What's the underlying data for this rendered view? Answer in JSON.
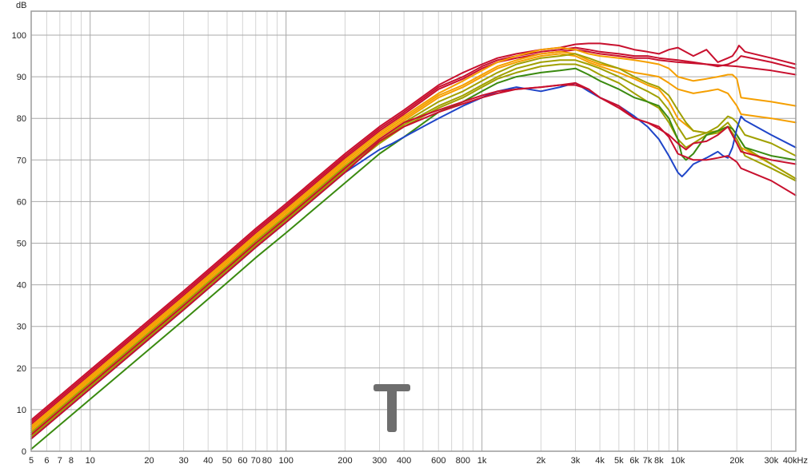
{
  "chart_data": {
    "type": "line",
    "x_scale": "log",
    "xlim": [
      5,
      40000
    ],
    "ylim": [
      0,
      105
    ],
    "x_unit": "kHz",
    "y_unit": "dB",
    "grid": true,
    "legend": "none",
    "x_ticks": [
      {
        "value": 5,
        "label": "5"
      },
      {
        "value": 6,
        "label": "6"
      },
      {
        "value": 7,
        "label": "7"
      },
      {
        "value": 8,
        "label": "8"
      },
      {
        "value": 10,
        "label": "10"
      },
      {
        "value": 20,
        "label": "20"
      },
      {
        "value": 30,
        "label": "30"
      },
      {
        "value": 40,
        "label": "40"
      },
      {
        "value": 50,
        "label": "50"
      },
      {
        "value": 60,
        "label": "60"
      },
      {
        "value": 70,
        "label": "70"
      },
      {
        "value": 80,
        "label": "80"
      },
      {
        "value": 100,
        "label": "100"
      },
      {
        "value": 200,
        "label": "200"
      },
      {
        "value": 300,
        "label": "300"
      },
      {
        "value": 400,
        "label": "400"
      },
      {
        "value": 600,
        "label": "600"
      },
      {
        "value": 800,
        "label": "800"
      },
      {
        "value": 1000,
        "label": "1k"
      },
      {
        "value": 2000,
        "label": "2k"
      },
      {
        "value": 3000,
        "label": "3k"
      },
      {
        "value": 4000,
        "label": "4k"
      },
      {
        "value": 5000,
        "label": "5k"
      },
      {
        "value": 6000,
        "label": "6k"
      },
      {
        "value": 7000,
        "label": "7k"
      },
      {
        "value": 8000,
        "label": "8k"
      },
      {
        "value": 10000,
        "label": "10k"
      },
      {
        "value": 20000,
        "label": "20k"
      },
      {
        "value": 30000,
        "label": "30k"
      },
      {
        "value": 40000,
        "label": "40k"
      }
    ],
    "y_ticks": [
      0,
      10,
      20,
      30,
      40,
      50,
      60,
      70,
      80,
      90,
      100
    ],
    "series": [
      {
        "color": "#c8102e",
        "x": [
          5,
          10,
          20,
          30,
          50,
          70,
          100,
          200,
          300,
          400,
          600,
          800,
          1000,
          1200,
          1500,
          2000,
          2500,
          3000,
          3500,
          4000,
          5000,
          6000,
          7000,
          8000,
          9000,
          10000,
          12000,
          14000,
          16000,
          18000,
          19000,
          20000,
          20500,
          21000,
          22000,
          30000,
          40000
        ],
        "y": [
          7.5,
          19.5,
          31.5,
          38.5,
          47.5,
          53.5,
          59.5,
          71.5,
          78,
          82,
          88,
          91,
          93,
          94.5,
          95.5,
          96.5,
          97,
          97.8,
          98,
          98,
          97.5,
          96.5,
          96,
          95.5,
          96.5,
          97,
          95,
          96.5,
          93.5,
          94.5,
          95,
          96.5,
          97.5,
          97,
          96,
          94.5,
          93
        ]
      },
      {
        "color": "#c8102e",
        "x": [
          5,
          10,
          20,
          30,
          50,
          70,
          100,
          200,
          300,
          400,
          600,
          800,
          1000,
          1200,
          1500,
          2000,
          2500,
          3000,
          3500,
          4000,
          5000,
          6000,
          7000,
          8000,
          10000,
          12000,
          14000,
          16000,
          18000,
          20000,
          21000,
          30000,
          40000
        ],
        "y": [
          7,
          19,
          31,
          38,
          47,
          53,
          59,
          71,
          77.5,
          81.5,
          87.5,
          90,
          92.5,
          94,
          95,
          96,
          96.5,
          97,
          96.5,
          96,
          95.5,
          95,
          95,
          94.5,
          94,
          93.5,
          93,
          92.5,
          93,
          94,
          95,
          93.5,
          92
        ]
      },
      {
        "color": "#c8102e",
        "x": [
          5,
          10,
          20,
          30,
          50,
          70,
          100,
          200,
          300,
          400,
          600,
          800,
          1000,
          1200,
          1500,
          2000,
          2500,
          3000,
          3500,
          4000,
          5000,
          6000,
          7000,
          8000,
          10000,
          20000,
          30000,
          40000
        ],
        "y": [
          6.5,
          18.5,
          30.5,
          37.5,
          46.5,
          52.5,
          58.5,
          70.5,
          77,
          81,
          87,
          89.5,
          92,
          93.5,
          94.5,
          95.5,
          96,
          96.5,
          96,
          95.5,
          95,
          94.5,
          94.5,
          94,
          93.5,
          92.5,
          91.5,
          90.5
        ]
      },
      {
        "color": "#f59f00",
        "x": [
          5,
          10,
          20,
          30,
          50,
          70,
          100,
          200,
          300,
          400,
          600,
          800,
          1000,
          1200,
          1500,
          2000,
          2500,
          3000,
          3500,
          4000,
          5000,
          6000,
          7000,
          8000,
          9000,
          10000,
          12000,
          14000,
          16000,
          18000,
          19000,
          20000,
          21000,
          30000,
          40000
        ],
        "y": [
          6,
          18,
          30,
          37,
          46,
          52,
          58,
          70,
          76.5,
          80.5,
          86,
          89,
          91.5,
          93.5,
          95,
          96.5,
          97,
          96.5,
          95.5,
          95,
          94.5,
          94,
          93.5,
          93,
          92,
          90,
          89,
          89.5,
          90,
          90.5,
          90.5,
          89.5,
          85,
          84,
          83
        ]
      },
      {
        "color": "#f59f00",
        "x": [
          5,
          10,
          20,
          30,
          50,
          70,
          100,
          200,
          300,
          400,
          600,
          800,
          1000,
          1200,
          1500,
          2000,
          2500,
          3000,
          3500,
          4000,
          5000,
          6000,
          7000,
          8000,
          9000,
          10000,
          12000,
          14000,
          16000,
          18000,
          20000,
          21000,
          30000,
          40000
        ],
        "y": [
          5.5,
          17.5,
          29.5,
          36.5,
          45.5,
          51.5,
          57.5,
          69.5,
          76,
          80,
          85.5,
          88,
          90.5,
          92.5,
          94,
          95.5,
          96,
          95.5,
          94,
          93,
          92,
          91,
          90.5,
          90,
          88.5,
          87,
          86,
          86.5,
          87,
          86,
          83,
          81,
          80,
          79
        ]
      },
      {
        "color": "#f59f00",
        "x": [
          5,
          10,
          20,
          30,
          50,
          70,
          100,
          200,
          300,
          400,
          600,
          800,
          1000,
          1200,
          1500,
          2000,
          2500,
          3000,
          3500,
          4000,
          5000,
          6000,
          7000,
          8000,
          9000,
          10000,
          12000,
          14000,
          16000,
          18000,
          20000,
          21000,
          30000,
          40000
        ],
        "y": [
          5,
          17,
          29,
          36,
          45,
          51,
          57,
          69,
          75.5,
          79.5,
          85,
          87.5,
          90,
          92,
          93.5,
          95,
          95.5,
          95,
          93.5,
          92.5,
          91,
          89.5,
          88,
          87,
          84,
          80,
          77,
          76.5,
          77,
          78,
          75,
          73,
          69,
          65.5
        ]
      },
      {
        "color": "#a0a000",
        "x": [
          5,
          10,
          20,
          30,
          50,
          70,
          100,
          200,
          300,
          400,
          600,
          800,
          1000,
          1200,
          1500,
          2000,
          2500,
          3000,
          3500,
          4000,
          5000,
          6000,
          7000,
          8000,
          9000,
          10000,
          11000,
          12000,
          14000,
          16000,
          18000,
          19000,
          20000,
          22000,
          30000,
          40000
        ],
        "y": [
          4.5,
          16.5,
          28.5,
          35.5,
          44.5,
          50.5,
          56.5,
          68.5,
          75,
          79,
          84,
          86.5,
          89,
          91,
          93,
          94.5,
          95,
          95.5,
          94.5,
          93.5,
          92,
          90,
          88.5,
          87.5,
          85.5,
          82,
          79,
          77,
          76.5,
          78,
          80.5,
          80,
          79,
          76,
          74,
          71
        ]
      },
      {
        "color": "#a0a000",
        "x": [
          5,
          10,
          20,
          30,
          50,
          70,
          100,
          200,
          300,
          400,
          600,
          800,
          1000,
          1200,
          1500,
          2000,
          2500,
          3000,
          3500,
          4000,
          5000,
          6000,
          7000,
          8000,
          9000,
          10000,
          11000,
          12000,
          14000,
          16000,
          18000,
          20000,
          22000,
          30000,
          40000
        ],
        "y": [
          4,
          16,
          28,
          35,
          44,
          50,
          56,
          68,
          74.5,
          78.5,
          83,
          85.5,
          88,
          90,
          92,
          93.5,
          94,
          94,
          93,
          92,
          90,
          88,
          86.5,
          85,
          82,
          78,
          75,
          75.5,
          76.5,
          77,
          79,
          76,
          73,
          69,
          65.5
        ]
      },
      {
        "color": "#a0a000",
        "x": [
          5,
          10,
          20,
          30,
          50,
          70,
          100,
          200,
          300,
          400,
          600,
          800,
          1000,
          1200,
          1500,
          2000,
          2500,
          3000,
          3500,
          4000,
          5000,
          6000,
          7000,
          8000,
          9000,
          10000,
          11000,
          12000,
          14000,
          16000,
          18000,
          20000,
          22000,
          30000,
          40000
        ],
        "y": [
          3.5,
          15.5,
          27.5,
          34.5,
          43.5,
          49.5,
          55.5,
          67.5,
          74,
          78,
          82.5,
          85,
          87.5,
          89.5,
          91,
          92.5,
          93,
          93,
          92,
          90.5,
          88.5,
          86,
          84,
          82.5,
          79,
          75,
          73,
          74,
          76,
          76.5,
          78,
          75,
          71,
          68,
          65
        ]
      },
      {
        "color": "#3a8a10",
        "x": [
          5,
          10,
          20,
          30,
          50,
          70,
          100,
          200,
          300,
          400,
          600,
          800,
          1000,
          1200,
          1500,
          2000,
          2500,
          3000,
          3500,
          4000,
          5000,
          6000,
          7000,
          8000,
          9000,
          10000,
          10500,
          11000,
          12000,
          14000,
          16000,
          18000,
          19000,
          20000,
          22000,
          30000,
          40000
        ],
        "y": [
          0.5,
          12.5,
          24.5,
          31.5,
          40.5,
          46.5,
          52.5,
          64.5,
          71.5,
          75.5,
          81.5,
          84,
          86.5,
          88.5,
          90,
          91,
          91.5,
          92,
          90.5,
          89,
          87,
          85,
          84,
          83,
          80,
          75,
          71,
          70,
          71.5,
          76,
          77,
          78,
          77.5,
          76,
          73,
          71,
          70
        ]
      },
      {
        "color": "#1f45c8",
        "x": [
          5,
          10,
          20,
          30,
          50,
          70,
          100,
          200,
          300,
          350,
          400,
          500,
          600,
          800,
          1000,
          1200,
          1500,
          2000,
          2500,
          3000,
          3500,
          4000,
          5000,
          6000,
          7000,
          8000,
          9000,
          10000,
          10500,
          11000,
          12000,
          14000,
          16000,
          17000,
          18000,
          19000,
          20000,
          21000,
          22000,
          30000,
          40000
        ],
        "y": [
          3,
          15,
          27,
          34,
          43,
          49,
          55,
          67,
          72.5,
          74,
          75.5,
          78,
          80,
          83,
          85,
          86.5,
          87.5,
          86.5,
          87.5,
          88.5,
          86.5,
          85,
          83,
          80.5,
          78,
          75,
          71,
          67,
          66,
          67,
          69,
          70.5,
          72,
          71,
          70.5,
          73,
          77.5,
          80.5,
          79.5,
          76,
          73
        ]
      },
      {
        "color": "#c8102e",
        "x": [
          5,
          10,
          20,
          30,
          50,
          70,
          100,
          200,
          300,
          400,
          600,
          800,
          1000,
          1200,
          1500,
          2000,
          2500,
          3000,
          3500,
          4000,
          5000,
          6000,
          7000,
          8000,
          9000,
          10000,
          12000,
          14000,
          16000,
          18000,
          20000,
          21000,
          30000,
          40000
        ],
        "y": [
          4,
          16,
          28,
          35,
          44,
          50,
          56,
          68,
          75,
          79,
          82,
          84,
          85.5,
          86.5,
          87,
          87.5,
          88,
          88,
          87,
          85,
          82.5,
          80,
          79,
          78,
          75.5,
          71.5,
          70,
          70,
          70.5,
          71,
          69.5,
          68,
          65,
          61.5
        ]
      },
      {
        "color": "#c8102e",
        "x": [
          5,
          10,
          20,
          30,
          50,
          70,
          100,
          200,
          300,
          400,
          600,
          800,
          1000,
          1200,
          1500,
          2000,
          2500,
          3000,
          3500,
          4000,
          5000,
          6000,
          7000,
          8000,
          9000,
          10000,
          11000,
          12000,
          14000,
          16000,
          18000,
          20000,
          21000,
          30000,
          40000
        ],
        "y": [
          3,
          15,
          27,
          34,
          43,
          49,
          55,
          67,
          74.5,
          78,
          81.5,
          83.5,
          85,
          86,
          87,
          87.5,
          88,
          88.5,
          87,
          85,
          83,
          80,
          79,
          77.5,
          76,
          74,
          72.5,
          74,
          74.5,
          76,
          78,
          74,
          72,
          70,
          69
        ]
      }
    ]
  },
  "colors": {
    "background": "#ffffff",
    "grid_major": "#a9a9a9",
    "grid_minor": "#d4d4d4",
    "frame": "#9c9c9c"
  },
  "watermark_icon": "letter-t-logo"
}
